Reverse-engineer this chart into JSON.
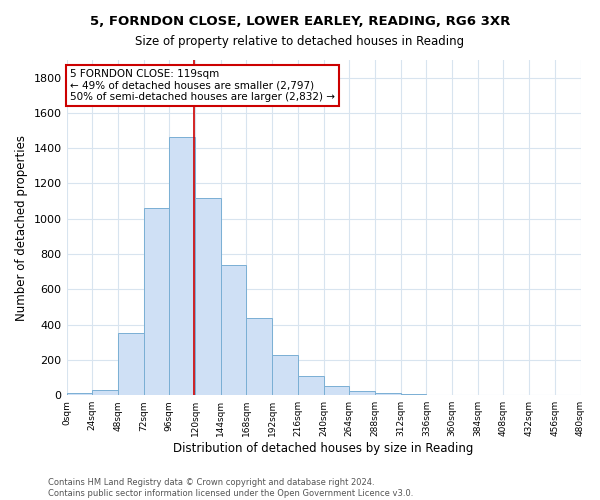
{
  "title": "5, FORNDON CLOSE, LOWER EARLEY, READING, RG6 3XR",
  "subtitle": "Size of property relative to detached houses in Reading",
  "xlabel": "Distribution of detached houses by size in Reading",
  "ylabel": "Number of detached properties",
  "bar_color": "#cfe0f5",
  "bar_edge_color": "#7aafd4",
  "background_color": "#ffffff",
  "grid_color": "#d8e4ef",
  "annotation_box_color": "#ffffff",
  "annotation_box_edge": "#cc0000",
  "vline_color": "#cc0000",
  "footer_line1": "Contains HM Land Registry data © Crown copyright and database right 2024.",
  "footer_line2": "Contains public sector information licensed under the Open Government Licence v3.0.",
  "annotation_line1": "5 FORNDON CLOSE: 119sqm",
  "annotation_line2": "← 49% of detached houses are smaller (2,797)",
  "annotation_line3": "50% of semi-detached houses are larger (2,832) →",
  "property_size": 119,
  "bin_edges": [
    0,
    24,
    48,
    72,
    96,
    120,
    144,
    168,
    192,
    216,
    240,
    264,
    288,
    312,
    336,
    360,
    384,
    408,
    432,
    456,
    480
  ],
  "bin_counts": [
    15,
    30,
    355,
    1060,
    1465,
    1120,
    740,
    440,
    228,
    108,
    55,
    25,
    15,
    5,
    3,
    2,
    1,
    0,
    0,
    0
  ],
  "ylim": [
    0,
    1900
  ],
  "yticks": [
    0,
    200,
    400,
    600,
    800,
    1000,
    1200,
    1400,
    1600,
    1800
  ],
  "xlim": [
    0,
    480
  ]
}
